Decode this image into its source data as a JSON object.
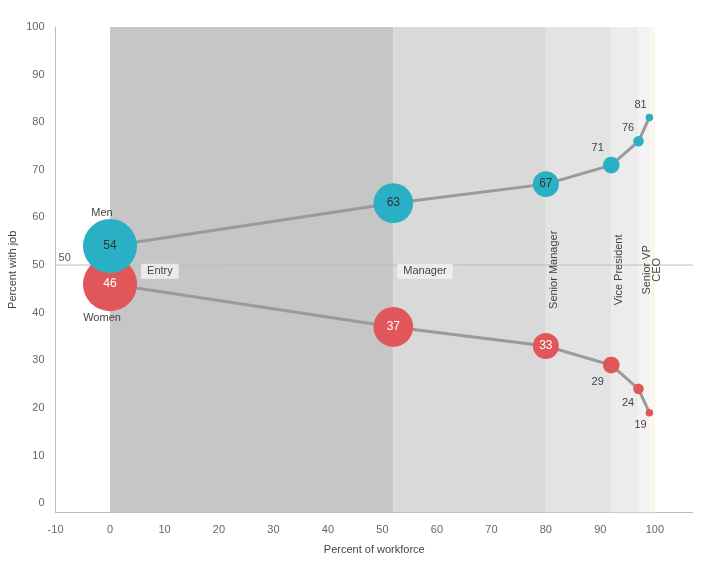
{
  "chart_data": {
    "type": "line",
    "x_label": "Percent of workforce",
    "y_label": "Percent with job",
    "categories": [
      "Entry",
      "Manager",
      "Senior Manager",
      "Vice President",
      "Senior VP",
      "CEO"
    ],
    "x": [
      0,
      52,
      80,
      92,
      97,
      99
    ],
    "series": [
      {
        "name": "Men",
        "color": "#2ab0c5",
        "values": [
          54,
          63,
          67,
          71,
          76,
          81
        ],
        "sizes": [
          52,
          28,
          12,
          5,
          2,
          1
        ]
      },
      {
        "name": "Women",
        "color": "#e15759",
        "values": [
          46,
          37,
          33,
          29,
          24,
          19
        ],
        "sizes": [
          52,
          28,
          12,
          5,
          2,
          1
        ]
      }
    ],
    "xlim": [
      -10,
      107
    ],
    "xticks": [
      -10,
      0,
      10,
      20,
      30,
      40,
      50,
      60,
      70,
      80,
      90,
      100
    ],
    "ylim": [
      -2,
      100
    ],
    "yticks": [
      0,
      10,
      20,
      30,
      40,
      50,
      60,
      70,
      80,
      90,
      100
    ],
    "reference_lines": [
      50
    ],
    "grid": false,
    "data_labels": true,
    "marker": "circle"
  }
}
